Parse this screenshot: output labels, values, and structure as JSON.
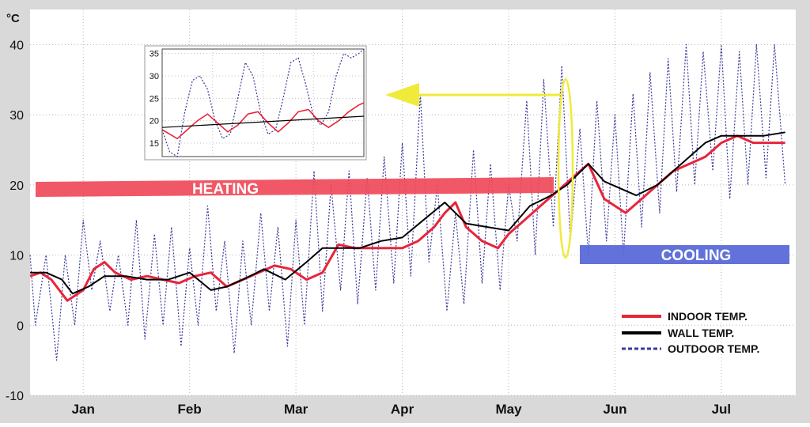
{
  "chart_data": {
    "type": "line",
    "yunit": "°C",
    "ylim": [
      -10,
      45
    ],
    "yticks": [
      -10,
      0,
      10,
      20,
      30,
      40
    ],
    "xlim": [
      0,
      7.2
    ],
    "months": [
      {
        "label": "Jan",
        "pos": 0.5
      },
      {
        "label": "Feb",
        "pos": 1.5
      },
      {
        "label": "Mar",
        "pos": 2.5
      },
      {
        "label": "Apr",
        "pos": 3.5
      },
      {
        "label": "May",
        "pos": 4.5
      },
      {
        "label": "Jun",
        "pos": 5.5
      },
      {
        "label": "Jul",
        "pos": 6.5
      }
    ],
    "grid": true,
    "legend_position": "bottom-right",
    "series": [
      {
        "name": "INDOOR TEMP.",
        "color": "#e8253a",
        "style": "solid",
        "x": [
          0,
          0.1,
          0.2,
          0.35,
          0.5,
          0.6,
          0.7,
          0.8,
          0.95,
          1.1,
          1.25,
          1.4,
          1.55,
          1.7,
          1.85,
          2.0,
          2.15,
          2.3,
          2.45,
          2.6,
          2.75,
          2.9,
          3.05,
          3.2,
          3.35,
          3.5,
          3.65,
          3.8,
          3.9,
          4.0,
          4.1,
          4.25,
          4.4,
          4.5,
          4.65,
          4.8,
          4.95,
          5.1,
          5.25,
          5.4,
          5.5,
          5.6,
          5.75,
          5.9,
          6.05,
          6.2,
          6.35,
          6.5,
          6.65,
          6.8,
          6.95,
          7.1
        ],
        "y": [
          7,
          7.5,
          6.5,
          3.5,
          5,
          8,
          9,
          7.5,
          6.5,
          7,
          6.5,
          6,
          7,
          7.5,
          5.5,
          6.5,
          7.5,
          8.5,
          8,
          6.5,
          7.5,
          11.5,
          11,
          11,
          11,
          11,
          12,
          14,
          16,
          17.5,
          14,
          12,
          11,
          13,
          15,
          17,
          19,
          21,
          23,
          18,
          17,
          16,
          18,
          20,
          22,
          23,
          24,
          26,
          27,
          26,
          26,
          26
        ]
      },
      {
        "name": "WALL TEMP.",
        "color": "#000000",
        "style": "solid",
        "x": [
          0,
          0.15,
          0.3,
          0.4,
          0.55,
          0.7,
          0.9,
          1.1,
          1.3,
          1.5,
          1.7,
          1.85,
          2.0,
          2.2,
          2.4,
          2.6,
          2.75,
          2.9,
          3.1,
          3.3,
          3.5,
          3.7,
          3.9,
          4.0,
          4.1,
          4.3,
          4.5,
          4.7,
          4.9,
          5.05,
          5.25,
          5.4,
          5.55,
          5.7,
          5.9,
          6.05,
          6.2,
          6.35,
          6.5,
          6.7,
          6.9,
          7.1
        ],
        "y": [
          7.5,
          7.5,
          6.5,
          4.5,
          5.5,
          7,
          7,
          6.5,
          6.5,
          7.5,
          5,
          5.5,
          6.5,
          8,
          6.5,
          9,
          11,
          11,
          11,
          12,
          12.5,
          15,
          17.5,
          16,
          14.5,
          14,
          13.5,
          17,
          18.5,
          20,
          23,
          20.5,
          19.5,
          18.5,
          20,
          22,
          24,
          26,
          27,
          27,
          27,
          27.5
        ]
      },
      {
        "name": "OUTDOOR TEMP.",
        "color": "#3a3a9a",
        "style": "dotted",
        "x": [
          0,
          0.05,
          0.15,
          0.25,
          0.33,
          0.42,
          0.5,
          0.58,
          0.66,
          0.75,
          0.83,
          0.92,
          1.0,
          1.08,
          1.17,
          1.25,
          1.33,
          1.42,
          1.5,
          1.58,
          1.67,
          1.75,
          1.83,
          1.92,
          2.0,
          2.08,
          2.17,
          2.25,
          2.33,
          2.42,
          2.5,
          2.58,
          2.67,
          2.75,
          2.83,
          2.92,
          3.0,
          3.08,
          3.17,
          3.25,
          3.33,
          3.42,
          3.5,
          3.58,
          3.67,
          3.75,
          3.83,
          3.92,
          4.0,
          4.08,
          4.17,
          4.25,
          4.33,
          4.42,
          4.5,
          4.58,
          4.67,
          4.75,
          4.83,
          4.92,
          5.0,
          5.08,
          5.17,
          5.25,
          5.33,
          5.42,
          5.5,
          5.58,
          5.67,
          5.75,
          5.83,
          5.92,
          6.0,
          6.08,
          6.17,
          6.25,
          6.33,
          6.42,
          6.5,
          6.58,
          6.67,
          6.75,
          6.83,
          6.92,
          7.0,
          7.1
        ],
        "y": [
          10,
          0,
          10,
          -5,
          10,
          0,
          15,
          5,
          12,
          2,
          10,
          0,
          15,
          -2,
          13,
          0,
          14,
          -3,
          11,
          0,
          17,
          2,
          12,
          -4,
          12,
          0,
          16,
          2,
          14,
          -3,
          15,
          0,
          22,
          2,
          20,
          5,
          22,
          3,
          21,
          5,
          24,
          6,
          26,
          7,
          33,
          9,
          20,
          2,
          16,
          3,
          25,
          6,
          23,
          5,
          20,
          12,
          32,
          10,
          35,
          14,
          37,
          12,
          28,
          10,
          32,
          12,
          30,
          10,
          33,
          14,
          36,
          16,
          38,
          19,
          40,
          20,
          39,
          22,
          40,
          18,
          39,
          20,
          40,
          21,
          40,
          20
        ]
      }
    ],
    "inset": {
      "ylim": [
        12,
        36
      ],
      "yticks": [
        15,
        20,
        25,
        30,
        35
      ],
      "xlim": [
        0,
        4
      ],
      "series": [
        {
          "name": "INDOOR TEMP.",
          "color": "#e8253a",
          "x": [
            0,
            0.15,
            0.3,
            0.5,
            0.7,
            0.9,
            1.1,
            1.3,
            1.5,
            1.7,
            1.9,
            2.1,
            2.3,
            2.5,
            2.7,
            2.9,
            3.1,
            3.3,
            3.5,
            3.7,
            3.9,
            4.0
          ],
          "y": [
            18,
            17,
            16,
            18,
            20,
            21.5,
            19.5,
            17.5,
            19,
            21.5,
            22,
            19.5,
            17.5,
            19.5,
            22,
            22.5,
            20,
            18.5,
            20,
            22,
            23.5,
            24
          ]
        },
        {
          "name": "WALL TEMP.",
          "color": "#000000",
          "x": [
            0,
            4
          ],
          "y": [
            18.5,
            21
          ]
        },
        {
          "name": "OUTDOOR TEMP.",
          "color": "#3a3a9a",
          "x": [
            0,
            0.15,
            0.3,
            0.45,
            0.6,
            0.75,
            0.9,
            1.05,
            1.2,
            1.35,
            1.5,
            1.65,
            1.8,
            1.95,
            2.1,
            2.25,
            2.4,
            2.55,
            2.7,
            2.85,
            3.0,
            3.15,
            3.3,
            3.45,
            3.6,
            3.75,
            3.9,
            4.0
          ],
          "y": [
            18,
            13,
            12,
            22,
            29,
            30,
            27,
            20,
            16,
            17,
            25,
            33,
            30,
            22,
            17,
            18,
            25,
            33,
            34,
            28,
            21,
            19,
            22,
            30,
            35,
            34,
            35,
            36
          ]
        }
      ]
    },
    "annotations": [
      {
        "text": "HEATING",
        "color": "#f04a5a"
      },
      {
        "text": "COOLING",
        "color": "#5a6ad8"
      }
    ],
    "highlight_color": "#f0ea3a"
  }
}
